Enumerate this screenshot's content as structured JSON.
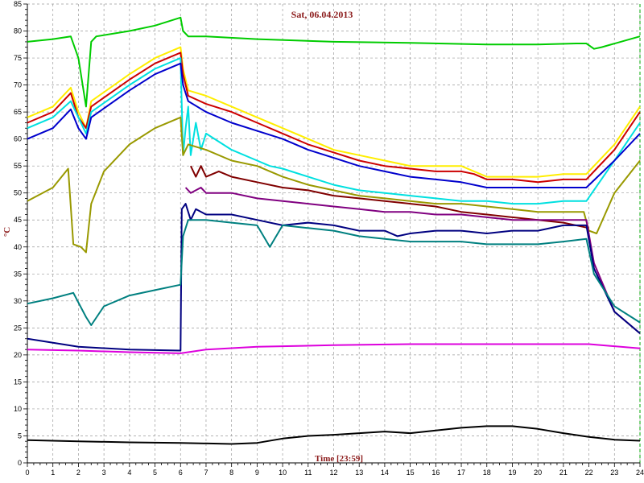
{
  "chart_data": {
    "type": "line",
    "title": "Sat, 06.04.2013",
    "xlabel": "Time [23:59]",
    "ylabel": "°C",
    "xlim": [
      0,
      24
    ],
    "ylim": [
      0,
      85
    ],
    "x_ticks": [
      "0",
      "1",
      "2",
      "3",
      "4",
      "5",
      "6",
      "7",
      "8",
      "9",
      "10",
      "11",
      "12",
      "13",
      "14",
      "15",
      "16",
      "17",
      "18",
      "19",
      "20",
      "21",
      "22",
      "23",
      "24"
    ],
    "y_ticks": [
      "0",
      "5",
      "10",
      "15",
      "20",
      "25",
      "30",
      "35",
      "40",
      "45",
      "50",
      "55",
      "60",
      "65",
      "70",
      "75",
      "80",
      "85"
    ],
    "grid": true,
    "series": [
      {
        "color": "#00cc00",
        "x": [
          0,
          1,
          1.7,
          2.0,
          2.3,
          2.5,
          2.7,
          4,
          5,
          6.0,
          6.1,
          6.3,
          7,
          9,
          12,
          15,
          18,
          20,
          21.5,
          21.9,
          22.2,
          22.5,
          24
        ],
        "y": [
          78,
          78.5,
          79,
          75,
          66,
          78,
          79,
          80,
          81,
          82.5,
          80,
          79,
          79,
          78.5,
          78,
          77.8,
          77.5,
          77.5,
          77.7,
          77.7,
          76.7,
          77,
          79
        ]
      },
      {
        "color": "#ffee00",
        "x": [
          0,
          1,
          1.7,
          2.0,
          2.3,
          2.5,
          4,
          5,
          6.0,
          6.1,
          6.3,
          7,
          8,
          9,
          10,
          11,
          12,
          13,
          14,
          15,
          16,
          17,
          17.5,
          18,
          19,
          20,
          21,
          21.9,
          23,
          24
        ],
        "y": [
          64,
          66,
          69.5,
          65,
          62,
          67,
          72,
          75,
          77,
          73,
          69,
          68,
          66,
          64,
          62,
          60,
          58,
          57,
          56,
          55,
          55,
          55,
          54,
          53,
          53,
          53,
          53.5,
          53.5,
          59,
          66
        ]
      },
      {
        "color": "#cc0000",
        "x": [
          0,
          1,
          1.7,
          2.0,
          2.3,
          2.5,
          4,
          5,
          6.0,
          6.1,
          6.3,
          7,
          8,
          9,
          10,
          11,
          12,
          13,
          14,
          15,
          16,
          17,
          17.5,
          18,
          19,
          20,
          21,
          21.9,
          23,
          24
        ],
        "y": [
          63,
          65,
          68.5,
          64,
          62,
          66,
          71,
          74,
          76,
          72,
          68,
          66.5,
          65,
          63,
          61,
          59,
          57.5,
          56,
          55,
          54.5,
          54,
          54,
          53.5,
          52.5,
          52.5,
          52,
          52.5,
          52.5,
          58,
          65
        ]
      },
      {
        "color": "#00e0e0",
        "x": [
          0,
          1,
          1.7,
          2.0,
          2.3,
          2.5,
          4,
          5,
          6.0,
          6.1,
          6.2,
          6.3,
          6.4,
          6.6,
          6.8,
          7,
          8,
          9,
          9.5,
          10,
          11,
          12,
          13,
          14,
          15,
          16,
          17,
          18,
          19,
          20,
          21,
          21.9,
          23,
          24
        ],
        "y": [
          62,
          64,
          67,
          64,
          61,
          65,
          70,
          73,
          75,
          57,
          62,
          66,
          57,
          63,
          58,
          61,
          58,
          56,
          55,
          54.5,
          53,
          51.5,
          50.5,
          50,
          49.5,
          49,
          48.5,
          48.5,
          48,
          48,
          48.5,
          48.5,
          56,
          63
        ]
      },
      {
        "color": "#0000cc",
        "x": [
          0,
          1,
          1.7,
          2.0,
          2.3,
          2.5,
          4,
          5,
          6.0,
          6.1,
          6.3,
          7,
          8,
          9,
          10,
          11,
          12,
          13,
          14,
          15,
          16,
          17,
          18,
          19,
          20,
          21,
          21.9,
          23,
          24
        ],
        "y": [
          60,
          62,
          65.5,
          62,
          60,
          64,
          69,
          72,
          74,
          70,
          67,
          65,
          63,
          61.5,
          60,
          58,
          56.5,
          55,
          54,
          53,
          52.5,
          52,
          51,
          51,
          51,
          51,
          51,
          56,
          61
        ]
      },
      {
        "color": "#999900",
        "x": [
          0,
          1,
          1.6,
          1.8,
          2.1,
          2.3,
          2.5,
          3,
          4,
          5,
          6.0,
          6.1,
          6.3,
          7,
          8,
          9,
          10,
          11,
          12,
          13,
          14,
          15,
          16,
          17,
          18,
          19,
          20,
          21,
          21.8,
          22.0,
          22.3,
          23,
          24
        ],
        "y": [
          48.5,
          51,
          54.5,
          40.5,
          40,
          39,
          48,
          54,
          59,
          62,
          64,
          57,
          59,
          58,
          56,
          55,
          53,
          51.5,
          50.5,
          49.5,
          49,
          48.5,
          48,
          48,
          47.5,
          47,
          46.5,
          46.5,
          46.5,
          43,
          42.5,
          50,
          56
        ]
      },
      {
        "color": "#800000",
        "x": [
          6.4,
          6.6,
          6.8,
          7,
          7.5,
          8,
          9,
          10,
          11,
          12,
          13,
          14,
          15,
          16,
          17,
          18,
          19,
          20,
          21,
          22
        ],
        "y": [
          55,
          53,
          55,
          53,
          54,
          53,
          52,
          51,
          50.5,
          49.5,
          49,
          48.5,
          48,
          47.5,
          46.5,
          46,
          45.5,
          45,
          44.5,
          43.5
        ]
      },
      {
        "color": "#800080",
        "x": [
          6.2,
          6.4,
          6.8,
          7,
          8,
          9,
          10,
          11,
          12,
          13,
          14,
          15,
          16,
          17,
          18,
          19,
          20,
          21,
          21.9,
          22.2,
          23,
          24
        ],
        "y": [
          51,
          50,
          51,
          50,
          50,
          49,
          48.5,
          48,
          47.5,
          47,
          46.5,
          46.5,
          46,
          46,
          45.5,
          45,
          45,
          45,
          45,
          37,
          28,
          24
        ]
      },
      {
        "color": "#000080",
        "x": [
          0,
          2,
          4,
          6,
          6.05,
          6.2,
          6.4,
          6.6,
          7,
          8,
          9,
          10,
          11,
          12,
          13,
          14,
          14.5,
          15,
          16,
          17,
          18,
          19,
          20,
          21,
          21.9,
          22.2,
          23,
          24
        ],
        "y": [
          23,
          21.5,
          21,
          20.8,
          47,
          48,
          45,
          47,
          46,
          46,
          45,
          44,
          44.5,
          44,
          43,
          43,
          42,
          42.5,
          43,
          43,
          42.5,
          43,
          43,
          44,
          44,
          36,
          28,
          24
        ]
      },
      {
        "color": "#008080",
        "x": [
          0,
          1,
          1.8,
          2.3,
          2.5,
          3,
          4,
          5,
          6.0,
          6.1,
          6.3,
          7,
          8,
          9,
          9.5,
          10,
          11,
          12,
          13,
          14,
          15,
          16,
          17,
          18,
          19,
          20,
          21,
          21.9,
          22.2,
          23,
          24
        ],
        "y": [
          29.5,
          30.5,
          31.5,
          27,
          25.5,
          29,
          31,
          32,
          33,
          42,
          45,
          45,
          44.5,
          44,
          40,
          44,
          43.5,
          43,
          42,
          41.5,
          41,
          41,
          41,
          40.5,
          40.5,
          40.5,
          41,
          41.5,
          35,
          29,
          26
        ]
      },
      {
        "color": "#dd00dd",
        "x": [
          0,
          2,
          4,
          6,
          7,
          9,
          12,
          15,
          18,
          21,
          22,
          24
        ],
        "y": [
          21,
          20.8,
          20.5,
          20.3,
          21,
          21.5,
          21.8,
          22,
          22,
          22,
          22,
          21.2
        ]
      },
      {
        "color": "#000000",
        "x": [
          0,
          2,
          4,
          6,
          8,
          9,
          10,
          11,
          12,
          13,
          14,
          15,
          16,
          17,
          18,
          19,
          20,
          21,
          22,
          23,
          24
        ],
        "y": [
          4.2,
          4,
          3.8,
          3.7,
          3.5,
          3.7,
          4.5,
          5,
          5.2,
          5.5,
          5.8,
          5.5,
          6,
          6.5,
          6.8,
          6.8,
          6.3,
          5.5,
          4.8,
          4.3,
          4.1
        ]
      }
    ]
  }
}
